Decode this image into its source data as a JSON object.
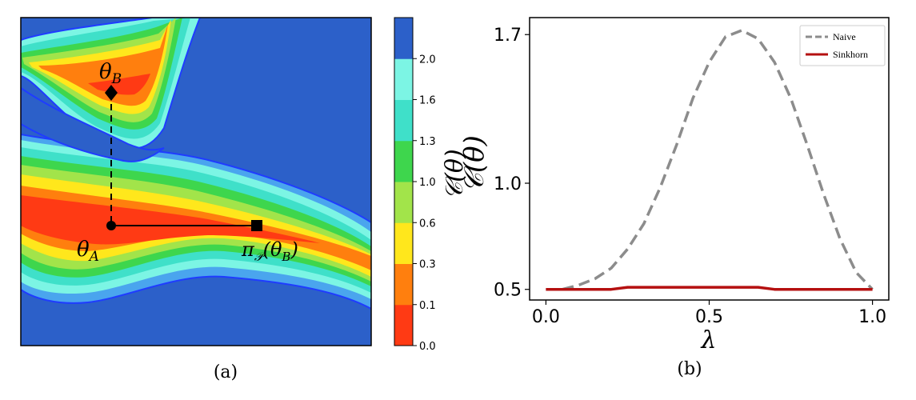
{
  "captions": {
    "a": "(a)",
    "b": "(b)"
  },
  "panel_a": {
    "labels": {
      "theta_a": "θ_A",
      "theta_b": "θ_B",
      "projection": "π_𝒫(θ_B)"
    }
  },
  "colorbar": {
    "levels": [
      "0.0",
      "0.1",
      "0.3",
      "0.6",
      "1.0",
      "1.3",
      "1.6",
      "2.0"
    ],
    "colors": [
      "#ff3a14",
      "#ff7f0e",
      "#ffe71c",
      "#a2e44a",
      "#3ed64d",
      "#3fe0c9",
      "#7cf5e4",
      "#2c60c9"
    ],
    "label": "𝒞(θ)"
  },
  "chart_data": [
    {
      "type": "heatmap",
      "panel": "(a)",
      "colorbar_levels": [
        0.0,
        0.1,
        0.3,
        0.6,
        1.0,
        1.3,
        1.6,
        2.0
      ],
      "points": [
        {
          "name": "θ_A",
          "marker": "circle"
        },
        {
          "name": "θ_B",
          "marker": "diamond"
        },
        {
          "name": "π_𝒫(θ_B)",
          "marker": "square"
        }
      ]
    },
    {
      "type": "line",
      "panel": "(b)",
      "xlabel": "λ",
      "ylabel": "𝒞(θ)",
      "xlim": [
        -0.05,
        1.05
      ],
      "ylim": [
        0.45,
        1.78
      ],
      "xticks": [
        "0.0",
        "0.5",
        "1.0"
      ],
      "yticks": [
        "0.5",
        "1.0",
        "1.7"
      ],
      "x": [
        0.0,
        0.05,
        0.1,
        0.15,
        0.2,
        0.25,
        0.3,
        0.35,
        0.4,
        0.45,
        0.5,
        0.55,
        0.6,
        0.65,
        0.7,
        0.75,
        0.8,
        0.85,
        0.9,
        0.95,
        1.0
      ],
      "series": [
        {
          "name": "Naive",
          "color": "#8c8c8c",
          "style": "dashed",
          "values": [
            0.5,
            0.5,
            0.52,
            0.55,
            0.6,
            0.69,
            0.81,
            0.98,
            1.18,
            1.4,
            1.57,
            1.69,
            1.72,
            1.68,
            1.57,
            1.4,
            1.18,
            0.95,
            0.74,
            0.58,
            0.5
          ]
        },
        {
          "name": "Sinkhorn",
          "color": "#b51010",
          "style": "solid",
          "values": [
            0.5,
            0.5,
            0.5,
            0.5,
            0.5,
            0.51,
            0.51,
            0.51,
            0.51,
            0.51,
            0.51,
            0.51,
            0.51,
            0.51,
            0.5,
            0.5,
            0.5,
            0.5,
            0.5,
            0.5,
            0.5
          ]
        }
      ],
      "legend": "top-right",
      "grid": false
    }
  ]
}
